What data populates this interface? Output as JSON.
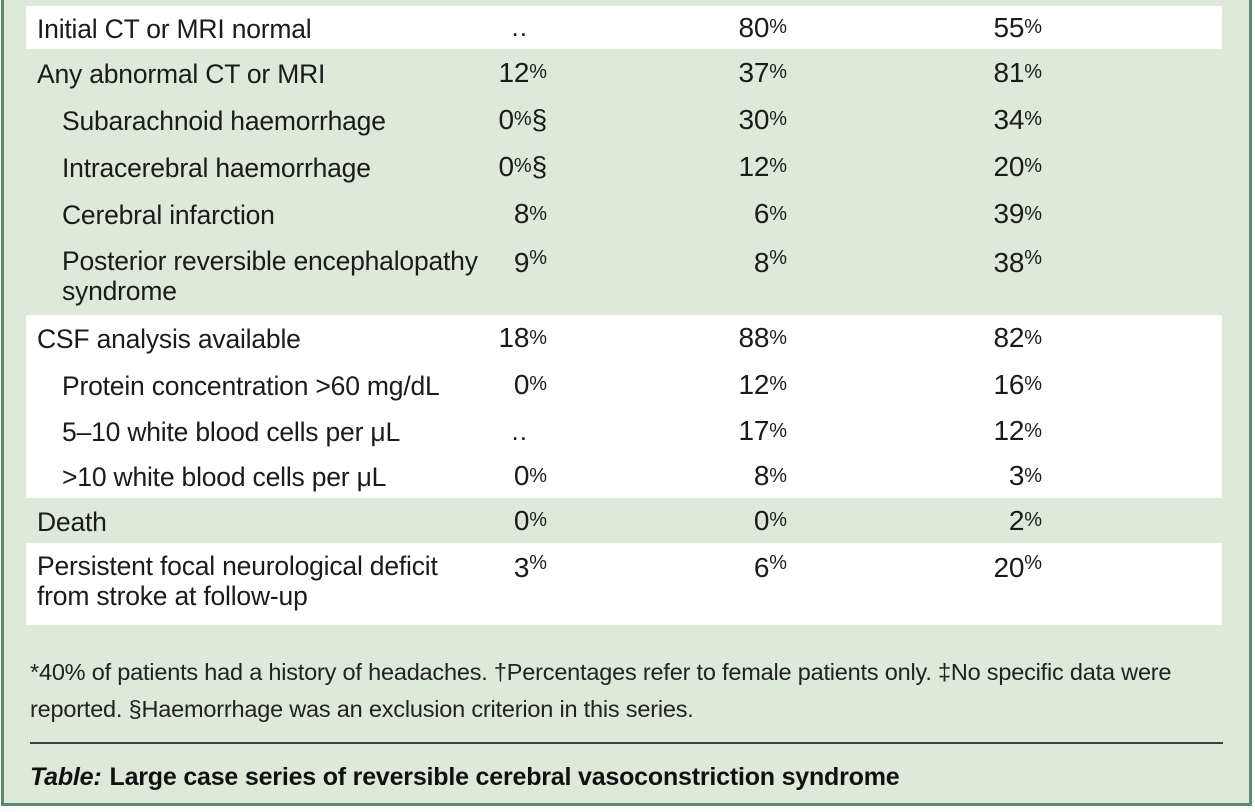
{
  "document_type": "journal-table",
  "colors": {
    "shade_green": "#dee8db",
    "frame_border": "#5b8a6f",
    "rule_gray": "#3f3f3f",
    "row_white": "#ffffff",
    "text": "#1b1b1b"
  },
  "table": {
    "rows": [
      {
        "label": "Initial CT or MRI normal",
        "values": [
          "..",
          "80%",
          "55%"
        ]
      },
      {
        "label": "Any abnormal CT or MRI",
        "values": [
          "12%",
          "37%",
          "81%"
        ]
      },
      {
        "label": "Subarachnoid haemorrhage",
        "values": [
          "0%§",
          "30%",
          "34%"
        ]
      },
      {
        "label": "Intracerebral haemorrhage",
        "values": [
          "0%§",
          "12%",
          "20%"
        ]
      },
      {
        "label": "Cerebral infarction",
        "values": [
          "8%",
          "6%",
          "39%"
        ]
      },
      {
        "label": "Posterior reversible encephalopathy syndrome",
        "values": [
          "9%",
          "8%",
          "38%"
        ]
      },
      {
        "label": "CSF analysis available",
        "values": [
          "18%",
          "88%",
          "82%"
        ]
      },
      {
        "label": "Protein concentration >60 mg/dL",
        "values": [
          "0%",
          "12%",
          "16%"
        ]
      },
      {
        "label": "5–10 white blood cells per μL",
        "values": [
          "..",
          "17%",
          "12%"
        ]
      },
      {
        "label": ">10 white blood cells per μL",
        "values": [
          "0%",
          "8%",
          "3%"
        ]
      },
      {
        "label": "Death",
        "values": [
          "0%",
          "0%",
          "2%"
        ]
      },
      {
        "label": "Persistent focal neurological deficit from stroke at follow-up",
        "values": [
          "3%",
          "6%",
          "20%"
        ]
      }
    ],
    "footnote": "*40% of patients had a history of headaches. †Percentages refer to female patients only. ‡No specific data were reported. §Haemorrhage was an exclusion criterion in this series.",
    "caption_prefix": "Table:",
    "caption_text": "Large case series of reversible cerebral vasoconstriction syndrome"
  }
}
